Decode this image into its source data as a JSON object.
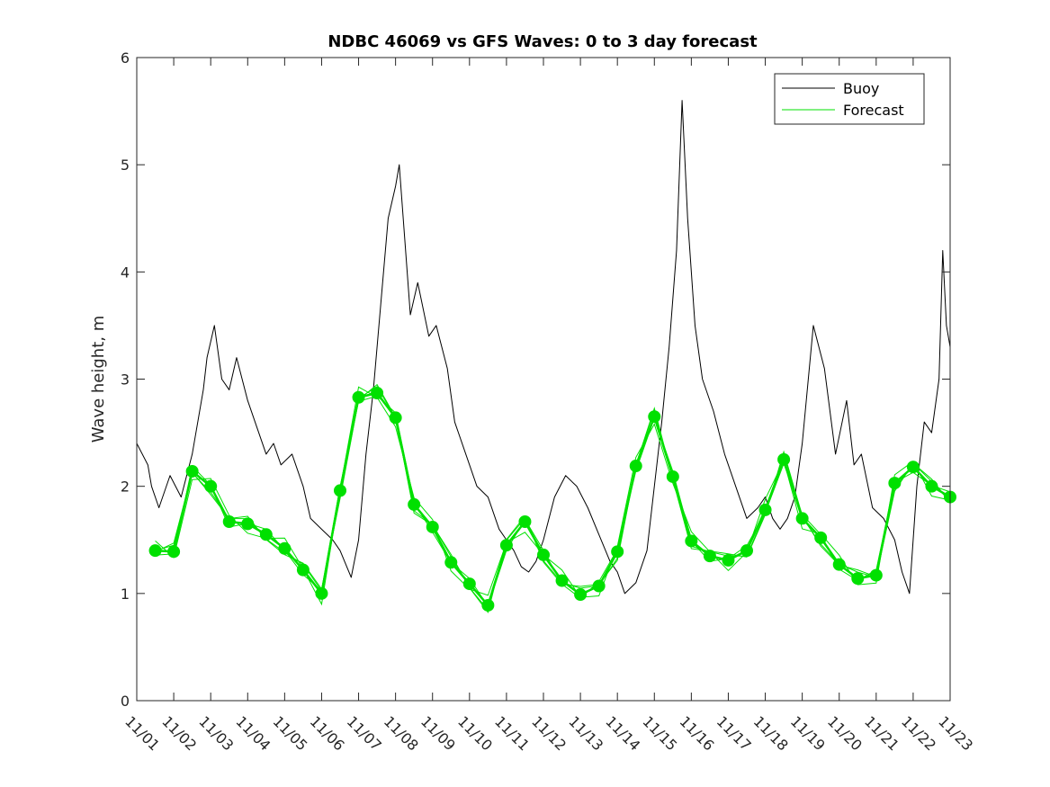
{
  "chart_data": {
    "type": "line",
    "title": "NDBC 46069 vs GFS Waves: 0 to 3 day forecast",
    "xlabel": "",
    "ylabel": "Wave height, m",
    "x_tick_labels": [
      "11/01",
      "11/02",
      "11/03",
      "11/04",
      "11/05",
      "11/06",
      "11/07",
      "11/08",
      "11/09",
      "11/10",
      "11/11",
      "11/12",
      "11/13",
      "11/14",
      "11/15",
      "11/16",
      "11/17",
      "11/18",
      "11/19",
      "11/20",
      "11/21",
      "11/22",
      "11/23"
    ],
    "x_range_days": [
      0,
      22
    ],
    "ylim": [
      0,
      6
    ],
    "y_ticks": [
      0,
      1,
      2,
      3,
      4,
      5,
      6
    ],
    "grid": false,
    "legend_position": "top-right",
    "colors": {
      "buoy": "#000000",
      "forecast": "#00e000"
    },
    "series": [
      {
        "name": "Buoy",
        "key": "buoy",
        "x": [
          0.0,
          0.3,
          0.4,
          0.6,
          0.9,
          1.2,
          1.5,
          1.8,
          1.9,
          2.1,
          2.3,
          2.5,
          2.7,
          3.0,
          3.2,
          3.5,
          3.7,
          3.9,
          4.2,
          4.5,
          4.7,
          5.0,
          5.3,
          5.5,
          5.8,
          6.0,
          6.2,
          6.4,
          6.6,
          6.8,
          7.0,
          7.1,
          7.25,
          7.4,
          7.6,
          7.9,
          8.1,
          8.4,
          8.6,
          8.9,
          9.2,
          9.5,
          9.8,
          10.0,
          10.2,
          10.4,
          10.6,
          10.8,
          11.0,
          11.3,
          11.6,
          11.9,
          12.2,
          12.5,
          12.8,
          13.0,
          13.2,
          13.5,
          13.8,
          14.0,
          14.2,
          14.4,
          14.6,
          14.75,
          14.9,
          15.1,
          15.3,
          15.6,
          15.9,
          16.2,
          16.5,
          16.8,
          17.0,
          17.2,
          17.4,
          17.6,
          17.8,
          18.0,
          18.3,
          18.6,
          18.9,
          19.2,
          19.4,
          19.6,
          19.9,
          20.2,
          20.5,
          20.7,
          20.9,
          21.1,
          21.3,
          21.5,
          21.7,
          21.8,
          21.9,
          22.0
        ],
        "values": [
          2.4,
          2.2,
          2.0,
          1.8,
          2.1,
          1.9,
          2.3,
          2.9,
          3.2,
          3.5,
          3.0,
          2.9,
          3.2,
          2.8,
          2.6,
          2.3,
          2.4,
          2.2,
          2.3,
          2.0,
          1.7,
          1.6,
          1.5,
          1.4,
          1.15,
          1.5,
          2.3,
          2.9,
          3.7,
          4.5,
          4.8,
          5.0,
          4.3,
          3.6,
          3.9,
          3.4,
          3.5,
          3.1,
          2.6,
          2.3,
          2.0,
          1.9,
          1.6,
          1.5,
          1.4,
          1.25,
          1.2,
          1.3,
          1.5,
          1.9,
          2.1,
          2.0,
          1.8,
          1.55,
          1.3,
          1.2,
          1.0,
          1.1,
          1.4,
          2.0,
          2.6,
          3.3,
          4.2,
          5.6,
          4.5,
          3.5,
          3.0,
          2.7,
          2.3,
          2.0,
          1.7,
          1.8,
          1.9,
          1.7,
          1.6,
          1.7,
          1.9,
          2.4,
          3.5,
          3.1,
          2.3,
          2.8,
          2.2,
          2.3,
          1.8,
          1.7,
          1.5,
          1.2,
          1.0,
          2.0,
          2.6,
          2.5,
          3.0,
          4.2,
          3.5,
          3.3
        ]
      },
      {
        "name": "Forecast",
        "key": "forecast",
        "x": [
          0.5,
          1.0,
          1.5,
          2.0,
          2.5,
          3.0,
          3.5,
          4.0,
          4.5,
          5.0,
          5.5,
          6.0,
          6.5,
          7.0,
          7.5,
          8.0,
          8.5,
          9.0,
          9.5,
          10.0,
          10.5,
          11.0,
          11.5,
          12.0,
          12.5,
          13.0,
          13.5,
          14.0,
          14.5,
          15.0,
          15.5,
          16.0,
          16.5,
          17.0,
          17.5,
          18.0,
          18.5,
          19.0,
          19.5,
          20.0,
          20.5,
          21.0,
          21.5,
          22.0
        ],
        "values": [
          1.4,
          1.39,
          2.14,
          2.0,
          1.67,
          1.65,
          1.55,
          1.42,
          1.22,
          1.0,
          1.96,
          2.83,
          2.87,
          2.64,
          1.83,
          1.62,
          1.29,
          1.09,
          0.89,
          1.45,
          1.67,
          1.36,
          1.12,
          0.99,
          1.07,
          1.39,
          2.19,
          2.65,
          2.09,
          1.49,
          1.35,
          1.31,
          1.4,
          1.78,
          2.25,
          1.7,
          1.52,
          1.27,
          1.14,
          1.17,
          2.03,
          2.18,
          2.0,
          1.9
        ],
        "markers": true
      }
    ]
  }
}
